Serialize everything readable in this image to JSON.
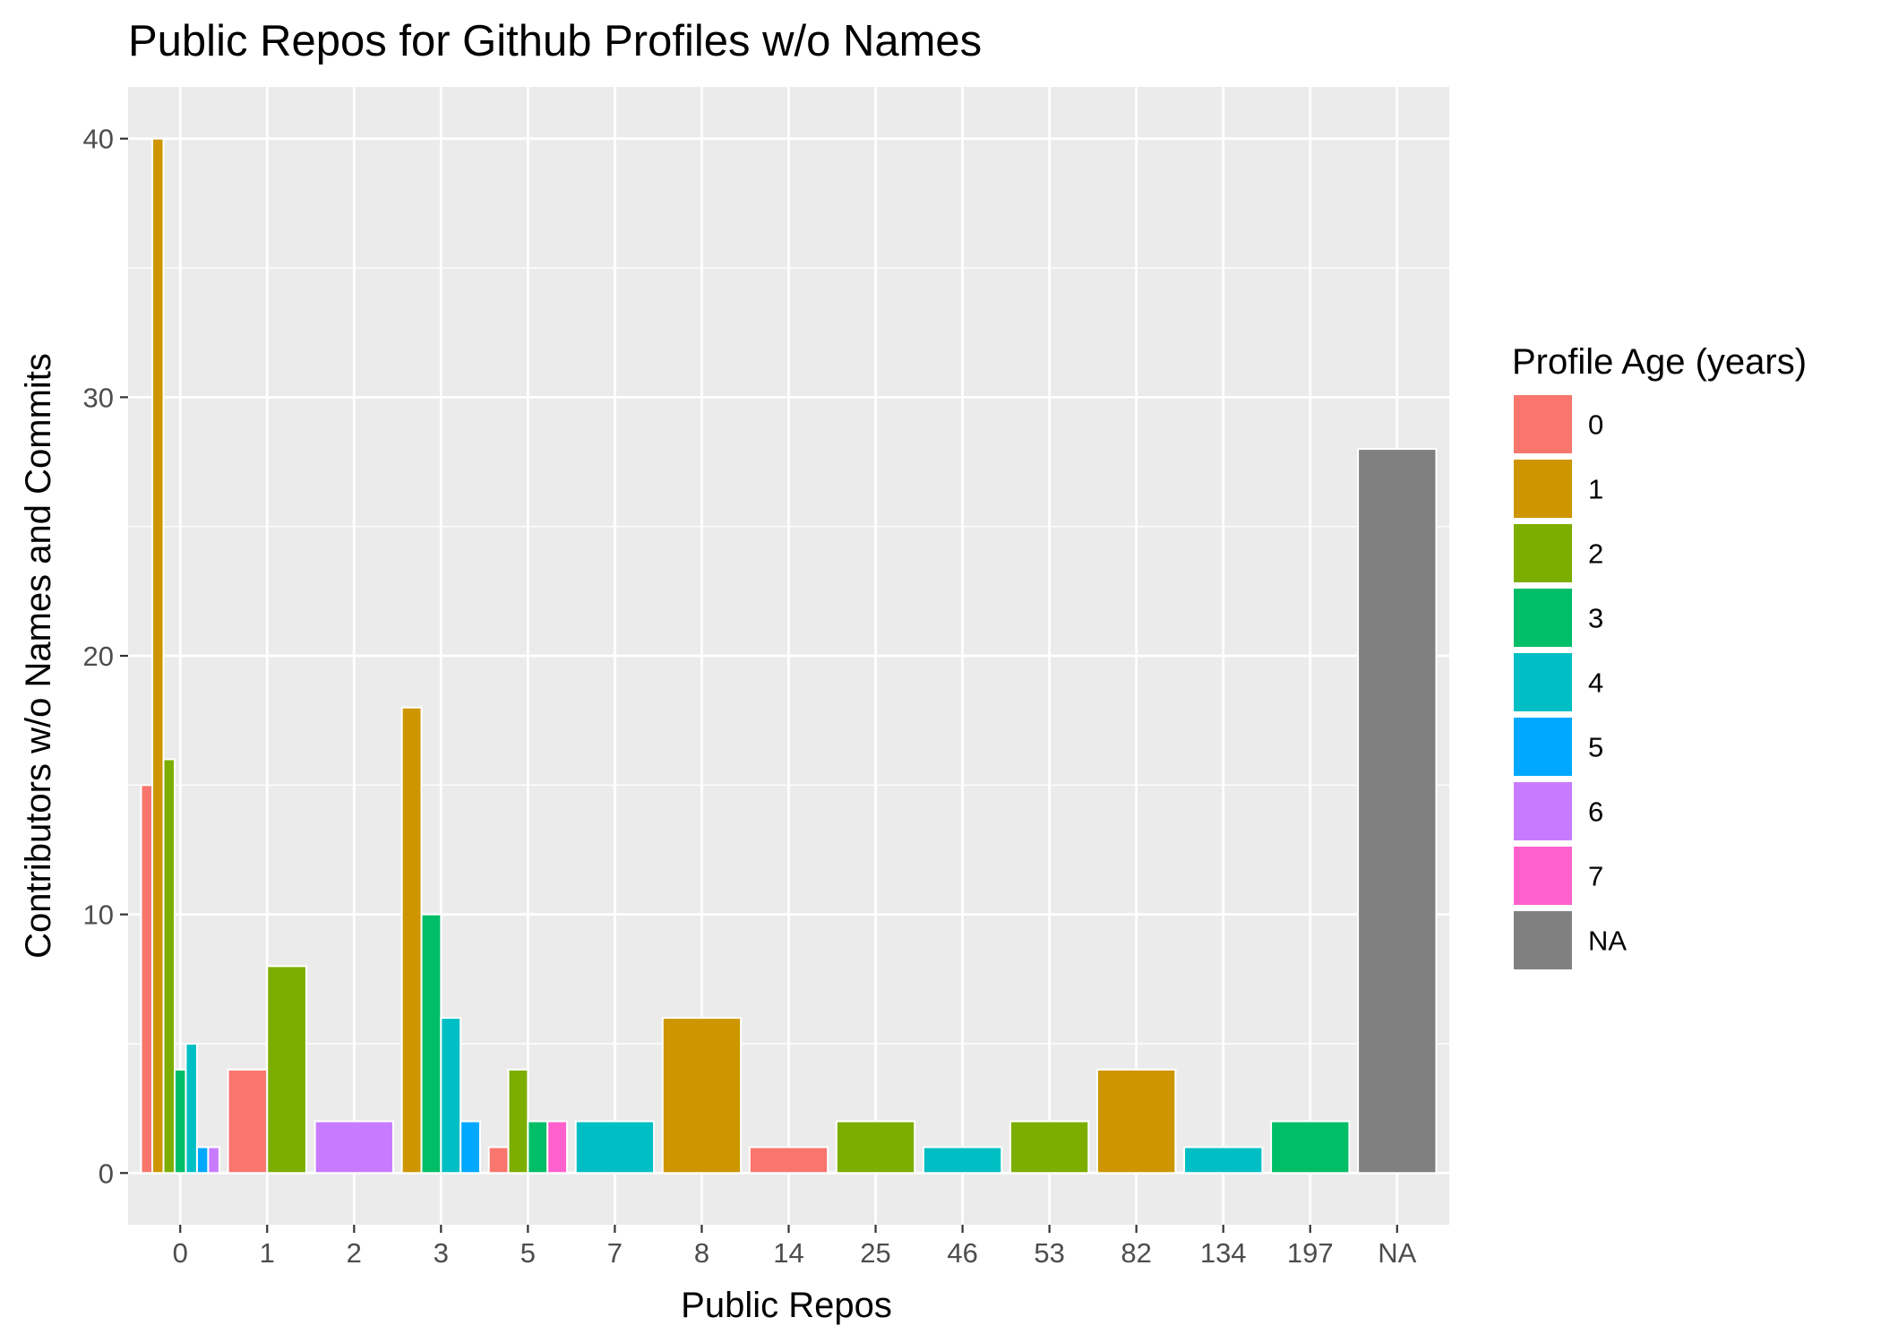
{
  "chart_data": {
    "type": "bar",
    "title": "Public Repos for Github Profiles w/o Names",
    "xlabel": "Public Repos",
    "ylabel": "Contributors w/o Names and Commits",
    "ylim": [
      -2,
      42
    ],
    "yticks": [
      0,
      10,
      20,
      30,
      40
    ],
    "grid": true,
    "legend_position": "right",
    "categories": [
      "0",
      "1",
      "2",
      "3",
      "5",
      "7",
      "8",
      "14",
      "25",
      "46",
      "53",
      "82",
      "134",
      "197",
      "NA"
    ],
    "legend": {
      "title": "Profile Age (years)",
      "entries": [
        {
          "label": "0",
          "color": "#F8766D"
        },
        {
          "label": "1",
          "color": "#CD9600"
        },
        {
          "label": "2",
          "color": "#7CAE00"
        },
        {
          "label": "3",
          "color": "#00BE67"
        },
        {
          "label": "4",
          "color": "#00BFC4"
        },
        {
          "label": "5",
          "color": "#00A9FF"
        },
        {
          "label": "6",
          "color": "#C77CFF"
        },
        {
          "label": "7",
          "color": "#FF61CC"
        },
        {
          "label": "NA",
          "color": "#808080"
        }
      ]
    },
    "groups": [
      {
        "category": "0",
        "bars": [
          {
            "age": "0",
            "value": 15
          },
          {
            "age": "1",
            "value": 40
          },
          {
            "age": "2",
            "value": 16
          },
          {
            "age": "3",
            "value": 4
          },
          {
            "age": "4",
            "value": 5
          },
          {
            "age": "5",
            "value": 1
          },
          {
            "age": "6",
            "value": 1
          }
        ]
      },
      {
        "category": "1",
        "bars": [
          {
            "age": "0",
            "value": 4
          },
          {
            "age": "2",
            "value": 8
          }
        ]
      },
      {
        "category": "2",
        "bars": [
          {
            "age": "6",
            "value": 2
          }
        ]
      },
      {
        "category": "3",
        "bars": [
          {
            "age": "1",
            "value": 18
          },
          {
            "age": "3",
            "value": 10
          },
          {
            "age": "4",
            "value": 6
          },
          {
            "age": "5",
            "value": 2
          }
        ]
      },
      {
        "category": "5",
        "bars": [
          {
            "age": "0",
            "value": 1
          },
          {
            "age": "2",
            "value": 4
          },
          {
            "age": "3",
            "value": 2
          },
          {
            "age": "7",
            "value": 2
          }
        ]
      },
      {
        "category": "7",
        "bars": [
          {
            "age": "4",
            "value": 2
          }
        ]
      },
      {
        "category": "8",
        "bars": [
          {
            "age": "1",
            "value": 6
          }
        ]
      },
      {
        "category": "14",
        "bars": [
          {
            "age": "0",
            "value": 1
          }
        ]
      },
      {
        "category": "25",
        "bars": [
          {
            "age": "2",
            "value": 2
          }
        ]
      },
      {
        "category": "46",
        "bars": [
          {
            "age": "4",
            "value": 1
          }
        ]
      },
      {
        "category": "53",
        "bars": [
          {
            "age": "2",
            "value": 2
          }
        ]
      },
      {
        "category": "82",
        "bars": [
          {
            "age": "1",
            "value": 4
          }
        ]
      },
      {
        "category": "134",
        "bars": [
          {
            "age": "4",
            "value": 1
          }
        ]
      },
      {
        "category": "197",
        "bars": [
          {
            "age": "3",
            "value": 2
          }
        ]
      },
      {
        "category": "NA",
        "bars": [
          {
            "age": "NA",
            "value": 28
          }
        ]
      }
    ]
  }
}
